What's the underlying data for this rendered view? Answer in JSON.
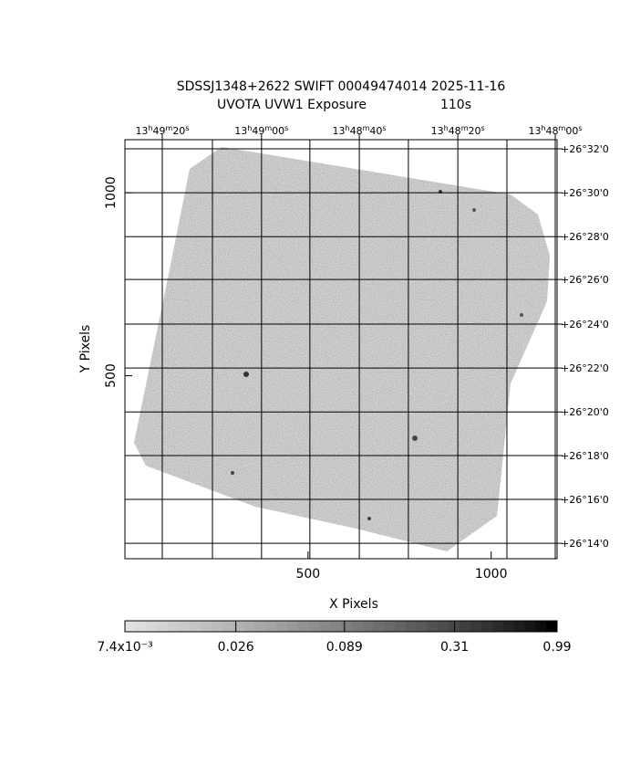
{
  "chart_data": {
    "type": "image",
    "title": "SDSSJ1348+2622 SWIFT 00049474014 2025-11-16",
    "subtitle": "UVOTA UVW1 Exposure",
    "exposure": "110s",
    "xlabel": "X Pixels",
    "ylabel": "Y Pixels",
    "xlim": [
      0,
      1180
    ],
    "ylim": [
      0,
      1145
    ],
    "xticks": [
      500,
      1000
    ],
    "yticks": [
      500,
      1000
    ],
    "ra_ticks": [
      {
        "value": 102,
        "label": "13h49m20s"
      },
      {
        "value": 373,
        "label": "13h49m00s"
      },
      {
        "value": 640,
        "label": "13h48m40s"
      },
      {
        "value": 909,
        "label": "13h48m20s"
      },
      {
        "value": 1175,
        "label": "13h48m00s"
      }
    ],
    "ra_grid": [
      102,
      239,
      373,
      505,
      640,
      774,
      909,
      1043,
      1175
    ],
    "dec_ticks": [
      {
        "value": 1120,
        "label": "+26°32'0"
      },
      {
        "value": 1000,
        "label": "+26°30'0"
      },
      {
        "value": 880,
        "label": "+26°28'0"
      },
      {
        "value": 763,
        "label": "+26°26'0"
      },
      {
        "value": 641,
        "label": "+26°24'0"
      },
      {
        "value": 521,
        "label": "+26°22'0"
      },
      {
        "value": 401,
        "label": "+26°20'0"
      },
      {
        "value": 282,
        "label": "+26°18'0"
      },
      {
        "value": 162,
        "label": "+26°16'0"
      },
      {
        "value": 42,
        "label": "+26°14'0"
      }
    ],
    "colorbar": {
      "scale": "log",
      "lim": [
        0.0074,
        0.99
      ],
      "ticks": [
        {
          "value": 0.0074,
          "label": "7.4x10⁻³"
        },
        0.026,
        0.089,
        0.31,
        0.99
      ]
    }
  }
}
